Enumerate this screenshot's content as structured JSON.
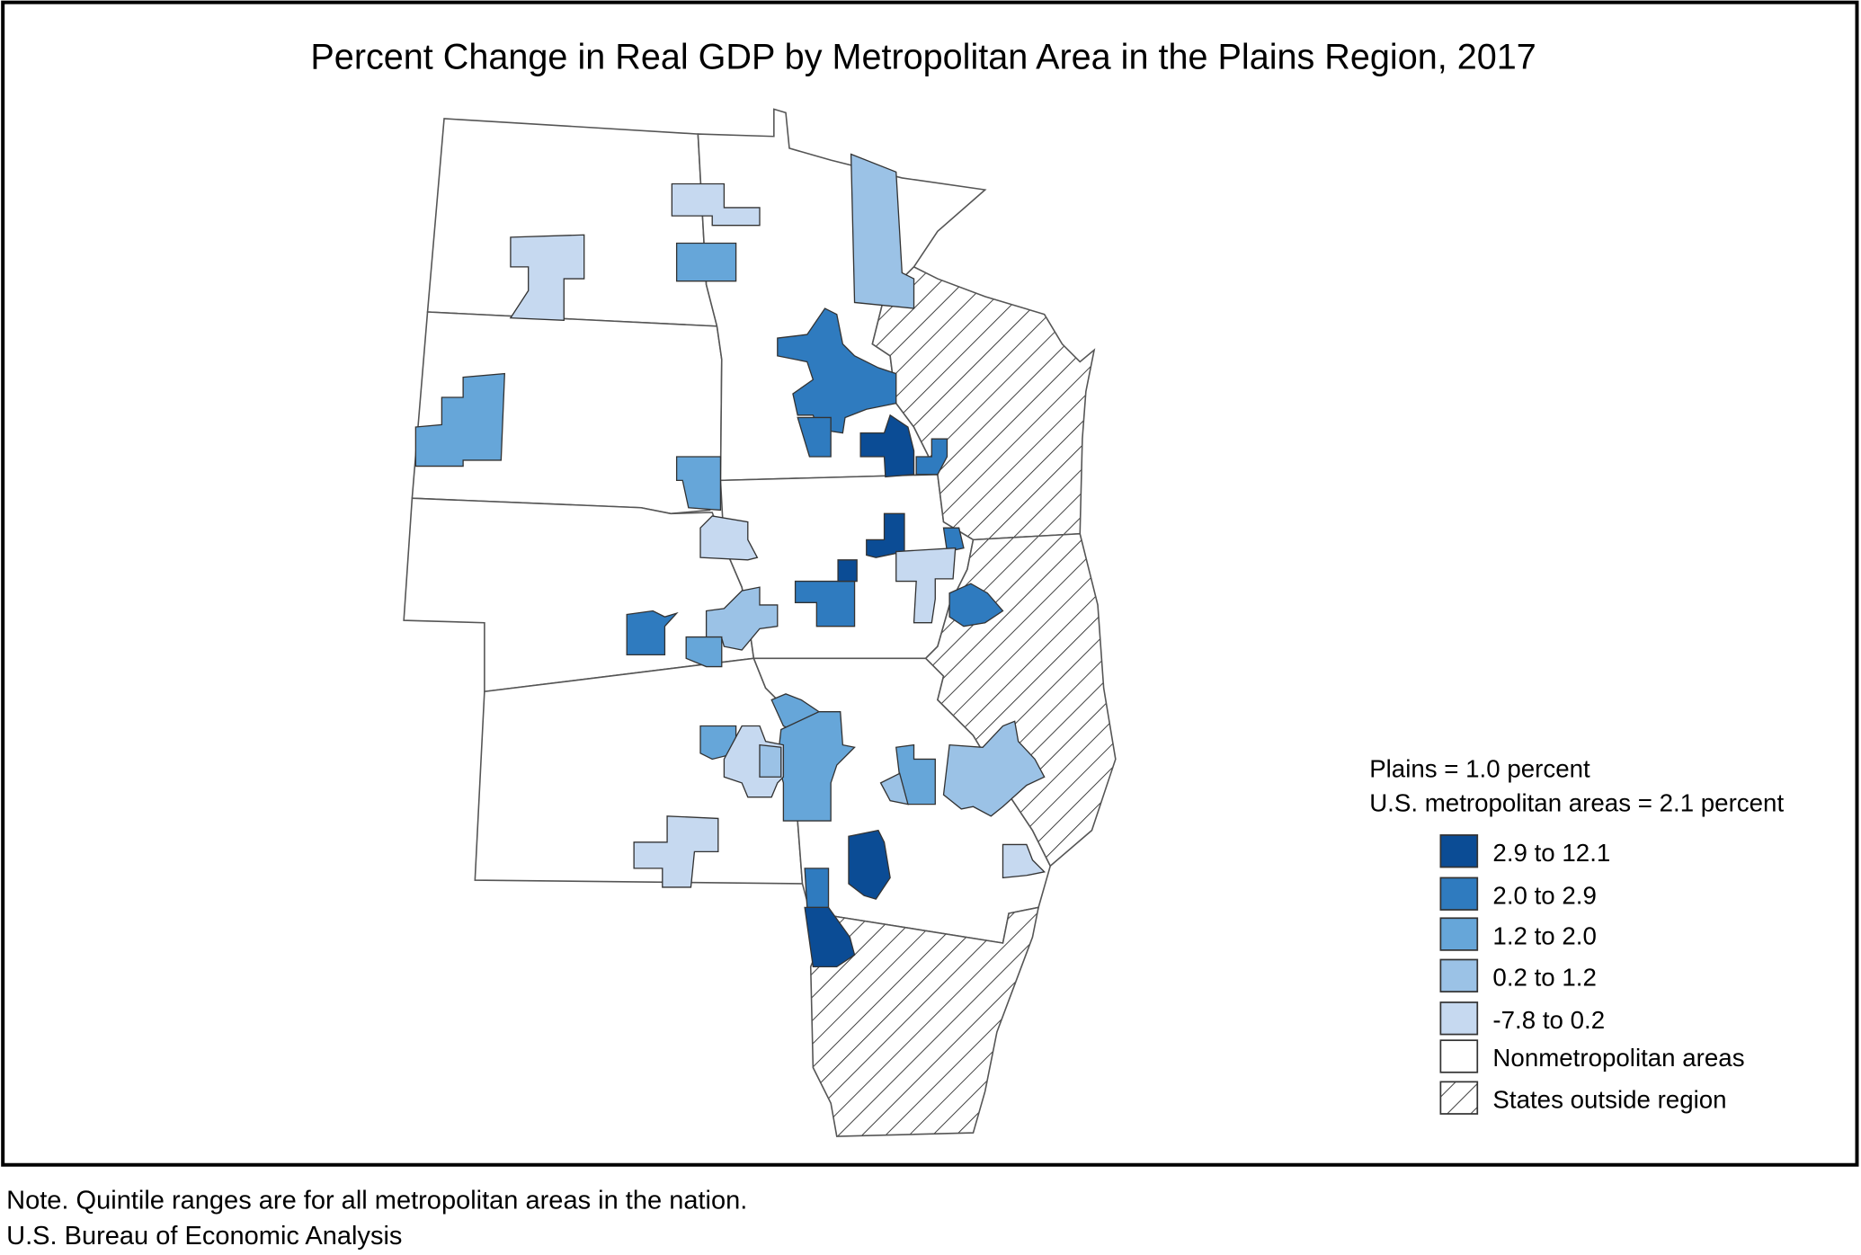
{
  "chart_data": {
    "type": "choropleth-map",
    "title": "Percent Change in Real GDP by Metropolitan Area in the Plains Region, 2017",
    "summary": [
      "Plains = 1.0 percent",
      "U.S. metropolitan areas = 2.1 percent"
    ],
    "legend": [
      {
        "label": "2.9 to 12.1",
        "color": "#0b4c95"
      },
      {
        "label": "2.0 to 2.9",
        "color": "#2f7bbf"
      },
      {
        "label": "1.2 to 2.0",
        "color": "#66a6d9"
      },
      {
        "label": "0.2 to 1.2",
        "color": "#9bc2e6"
      },
      {
        "label": "-7.8 to 0.2",
        "color": "#c6d9f0"
      },
      {
        "label": "Nonmetropolitan areas",
        "color": "#ffffff"
      },
      {
        "label": "States outside region",
        "pattern": "diagonal-hatch"
      }
    ],
    "legend_position": "bottom-right"
  },
  "footer": {
    "note": "Note. Quintile ranges are for all metropolitan areas in the nation.",
    "source": "U.S. Bureau of Economic Analysis"
  }
}
